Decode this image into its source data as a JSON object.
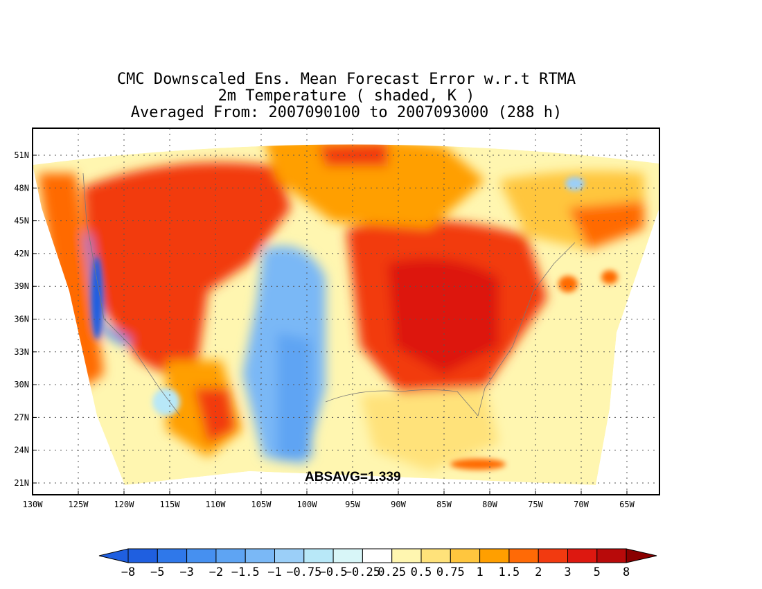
{
  "title": {
    "line1": "CMC Downscaled Ens. Mean Forecast Error w.r.t RTMA",
    "line2": "2m Temperature ( shaded, K )",
    "line3": "Averaged From: 2007090100 to 2007093000 (288 h)"
  },
  "map": {
    "lat_ticks": [
      "51N",
      "48N",
      "45N",
      "42N",
      "39N",
      "36N",
      "33N",
      "30N",
      "27N",
      "24N",
      "21N"
    ],
    "lon_ticks": [
      "130W",
      "125W",
      "120W",
      "115W",
      "110W",
      "105W",
      "100W",
      "95W",
      "90W",
      "85W",
      "80W",
      "75W",
      "70W",
      "65W"
    ],
    "annotation": "ABSAVG=1.339",
    "grid": "dotted"
  },
  "colorbar": {
    "labels": [
      "-8",
      "-5",
      "-3",
      "-2",
      "-1.5",
      "-1",
      "-0.75",
      "-0.5",
      "-0.25",
      "0.25",
      "0.5",
      "0.75",
      "1",
      "1.5",
      "2",
      "3",
      "5",
      "8"
    ],
    "colors": [
      "#1f5fe0",
      "#2f78ea",
      "#4690f0",
      "#5ea4f3",
      "#7ab8f6",
      "#9bcff8",
      "#b8e8f8",
      "#d8f6f8",
      "#ffffff",
      "#fff6b0",
      "#ffe27a",
      "#ffc63e",
      "#ff9f00",
      "#ff6a06",
      "#f23a10",
      "#dd1810",
      "#b80a0a",
      "#8a0000"
    ]
  }
}
